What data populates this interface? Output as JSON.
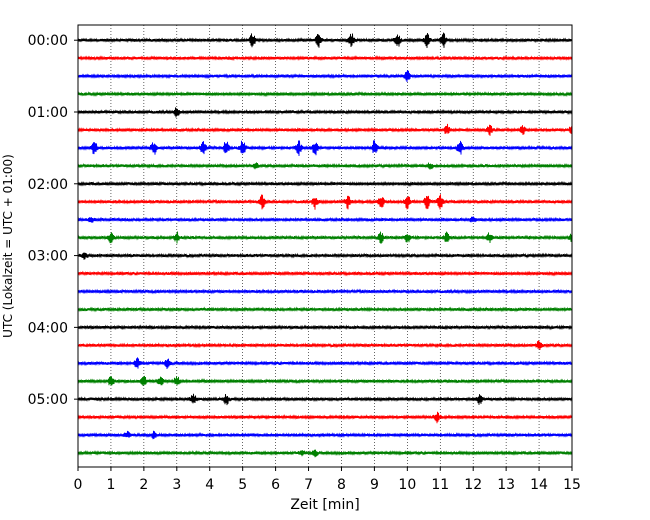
{
  "chart_data": {
    "type": "line",
    "subtype": "helicorder-seismogram",
    "title": "",
    "xlabel": "Zeit  [min]",
    "ylabel": "UTC (Lokalzeit = UTC + 01:00)",
    "xlim": [
      0,
      15
    ],
    "x_ticks": [
      "0",
      "1",
      "2",
      "3",
      "4",
      "5",
      "6",
      "7",
      "8",
      "9",
      "10",
      "11",
      "12",
      "13",
      "14",
      "15"
    ],
    "y_tick_labels": [
      "00:00",
      "01:00",
      "02:00",
      "03:00",
      "04:00",
      "05:00"
    ],
    "trace_interval_minutes": 15,
    "trace_count": 24,
    "trace_colors": [
      "#000000",
      "#ff0000",
      "#0000ff",
      "#008000"
    ],
    "grid": "vertical dotted lines at each minute",
    "legend": "none",
    "events": [
      {
        "trace": 0,
        "minutes": [
          5.3,
          7.3,
          8.3,
          9.7,
          10.6,
          11.1
        ],
        "intensity": "strong"
      },
      {
        "trace": 2,
        "minutes": [
          10.0
        ],
        "intensity": "medium"
      },
      {
        "trace": 4,
        "minutes": [
          3.0
        ],
        "intensity": "medium"
      },
      {
        "trace": 5,
        "minutes": [
          11.2,
          12.5,
          13.5,
          15.0
        ],
        "intensity": "medium"
      },
      {
        "trace": 6,
        "minutes": [
          0.5,
          2.3,
          3.8,
          4.5,
          5.0,
          6.7,
          7.2,
          9.0,
          11.6
        ],
        "intensity": "strong"
      },
      {
        "trace": 7,
        "minutes": [
          5.4,
          10.7
        ],
        "intensity": "weak"
      },
      {
        "trace": 9,
        "minutes": [
          5.6,
          7.2,
          8.2,
          9.2,
          10.0,
          10.6,
          11.0
        ],
        "intensity": "strong"
      },
      {
        "trace": 10,
        "minutes": [
          0.4,
          12.0
        ],
        "intensity": "weak"
      },
      {
        "trace": 11,
        "minutes": [
          1.0,
          3.0,
          9.2,
          10.0,
          11.2,
          12.5,
          15.0
        ],
        "intensity": "medium"
      },
      {
        "trace": 12,
        "minutes": [
          0.2
        ],
        "intensity": "weak"
      },
      {
        "trace": 17,
        "minutes": [
          14.0
        ],
        "intensity": "medium"
      },
      {
        "trace": 18,
        "minutes": [
          1.8,
          2.7
        ],
        "intensity": "medium"
      },
      {
        "trace": 19,
        "minutes": [
          1.0,
          2.0,
          2.5,
          3.0
        ],
        "intensity": "medium"
      },
      {
        "trace": 20,
        "minutes": [
          3.5,
          4.5,
          12.2
        ],
        "intensity": "medium"
      },
      {
        "trace": 21,
        "minutes": [
          10.9
        ],
        "intensity": "medium"
      },
      {
        "trace": 22,
        "minutes": [
          1.5,
          2.3
        ],
        "intensity": "weak"
      },
      {
        "trace": 23,
        "minutes": [
          6.8,
          7.2
        ],
        "intensity": "weak"
      }
    ]
  }
}
